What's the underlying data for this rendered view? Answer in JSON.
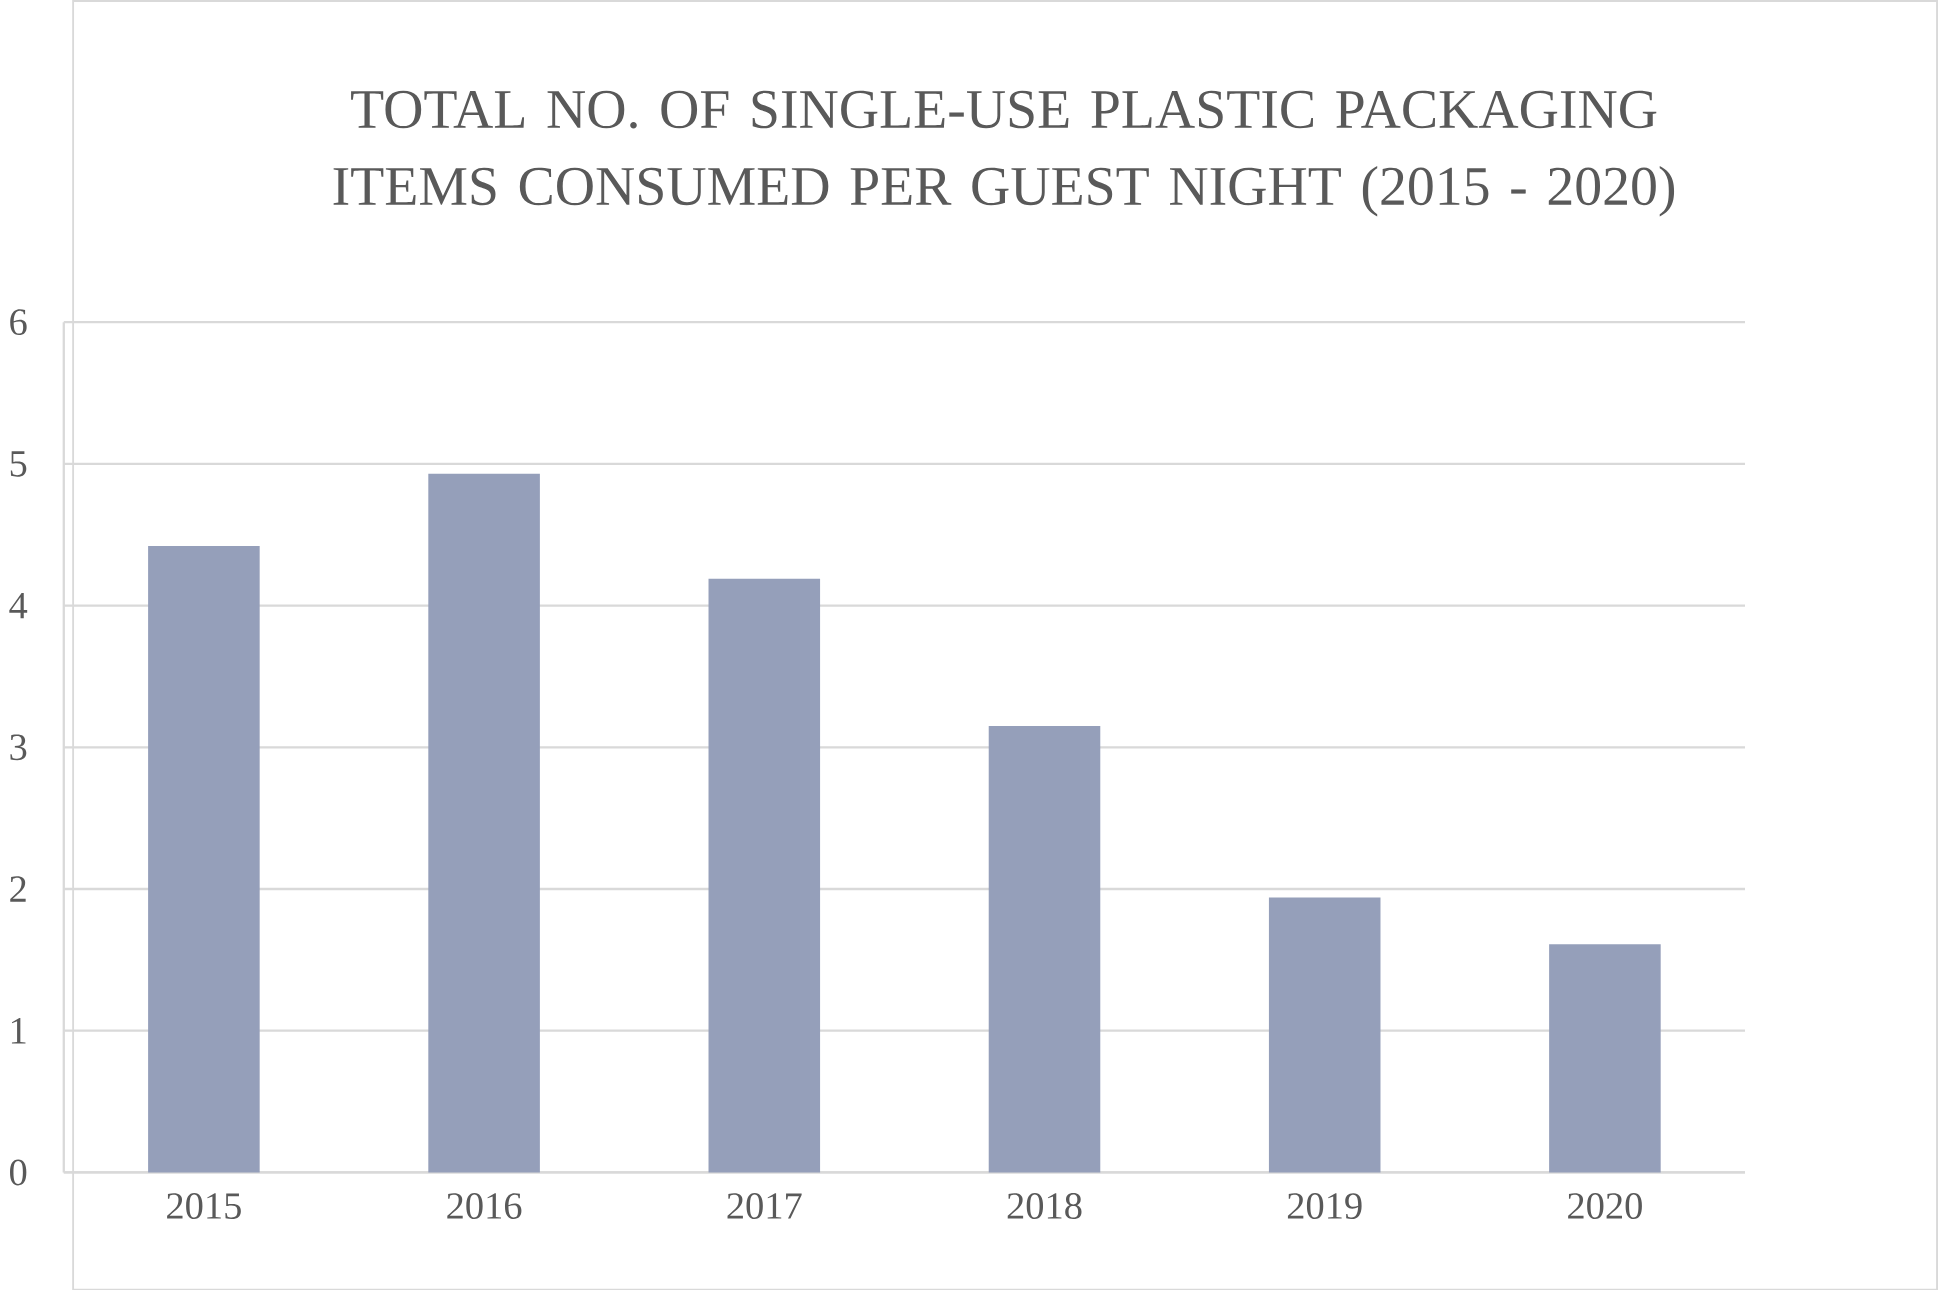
{
  "chart_data": {
    "type": "bar",
    "title": "TOTAL NO. OF SINGLE-USE PLASTIC PACKAGING ITEMS CONSUMED PER GUEST NIGHT (2015 - 2020)",
    "categories": [
      "2015",
      "2016",
      "2017",
      "2018",
      "2019",
      "2020"
    ],
    "values": [
      4.42,
      4.93,
      4.19,
      3.15,
      1.94,
      1.61
    ],
    "color": "#959fba",
    "ylim": [
      0,
      6
    ],
    "yticks": [
      0,
      1,
      2,
      3,
      4,
      5,
      6
    ],
    "grid": "y"
  }
}
